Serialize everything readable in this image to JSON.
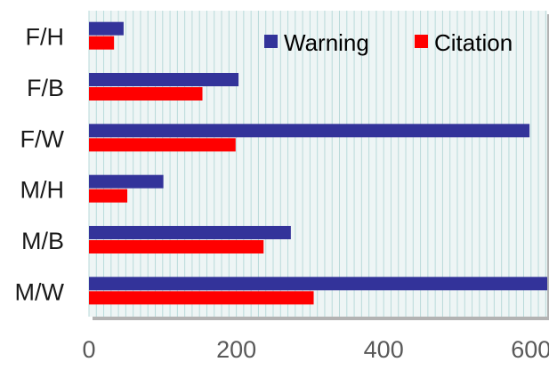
{
  "chart_data": {
    "type": "bar",
    "orientation": "horizontal",
    "categories": [
      "F/H",
      "F/B",
      "F/W",
      "M/H",
      "M/B",
      "M/W"
    ],
    "series": [
      {
        "name": "Warning",
        "color": "#33339a",
        "values": [
          47,
          203,
          598,
          101,
          274,
          622
        ]
      },
      {
        "name": "Citation",
        "color": "#ff0000",
        "values": [
          34,
          154,
          199,
          52,
          237,
          305
        ]
      }
    ],
    "xlim": [
      0,
      622
    ],
    "xticks": [
      0,
      200,
      400,
      600
    ],
    "title": "",
    "xlabel": "",
    "ylabel": "",
    "grid": true,
    "legend_position": "top-right",
    "plot_background": "#eef5f5",
    "grid_color": "#b9dada"
  }
}
